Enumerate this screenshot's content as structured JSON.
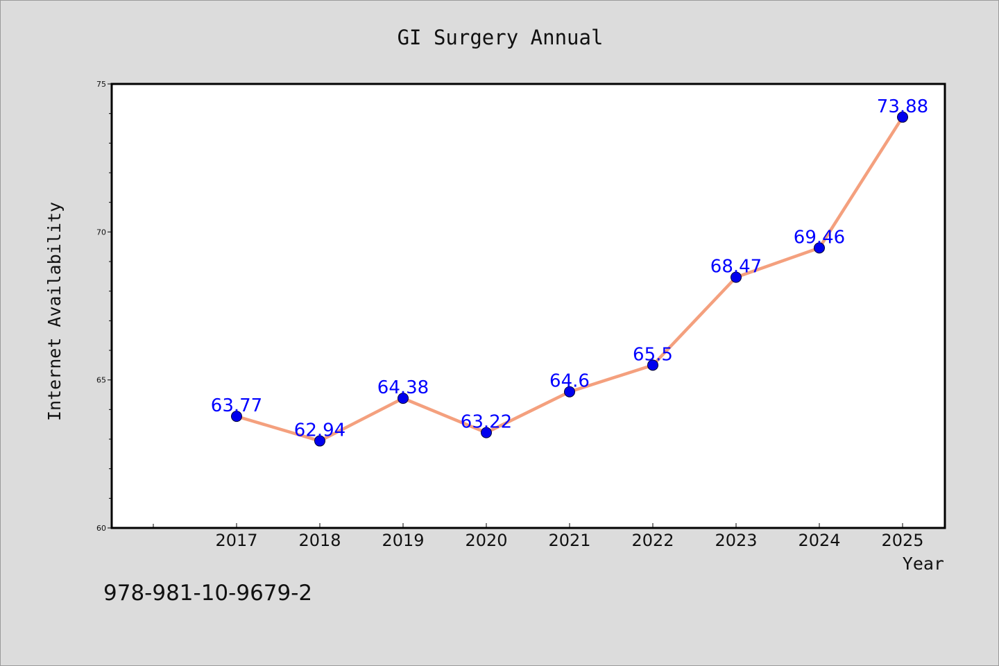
{
  "chart_data": {
    "type": "line",
    "title": "GI Surgery Annual",
    "xlabel": "Year",
    "ylabel": "Internet Availability",
    "categories": [
      "2017",
      "2018",
      "2019",
      "2020",
      "2021",
      "2022",
      "2023",
      "2024",
      "2025"
    ],
    "series": [
      {
        "values": [
          63.77,
          62.94,
          64.38,
          63.22,
          64.6,
          65.5,
          68.47,
          69.46,
          73.88
        ],
        "data_labels": [
          "63.77",
          "62.94",
          "64.38",
          "63.22",
          "64.6",
          "65.5",
          "68.47",
          "69.46",
          "73.88"
        ]
      }
    ],
    "ylim": [
      60,
      75
    ],
    "yticks": [
      "60",
      "65",
      "70",
      "75"
    ],
    "grid": false,
    "legend": "none",
    "colors": {
      "line": "#f4a07e",
      "marker": "#0000ee",
      "data_label": "#0000ff",
      "background": "#dcdcdc",
      "plot_background": "#ffffff"
    }
  },
  "footer_code": "978-981-10-9679-2"
}
